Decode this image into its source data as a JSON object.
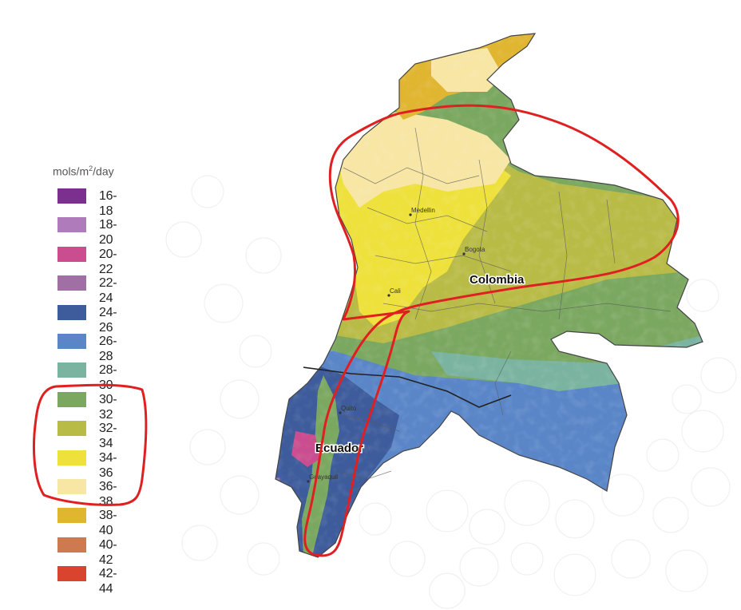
{
  "legend": {
    "title_main": "mols/m",
    "title_sup": "2",
    "title_tail": "/day",
    "items": [
      {
        "label": "16-18",
        "color": "#7b2f8e"
      },
      {
        "label": "18-20",
        "color": "#b07bbb"
      },
      {
        "label": "20-22",
        "color": "#c94d8f"
      },
      {
        "label": "22-24",
        "color": "#a070a4"
      },
      {
        "label": "24-26",
        "color": "#3e5c9c"
      },
      {
        "label": "26-28",
        "color": "#5a86c8"
      },
      {
        "label": "28-30",
        "color": "#7ab3a0"
      },
      {
        "label": "30-32",
        "color": "#7ba861"
      },
      {
        "label": "32-34",
        "color": "#b9bb47"
      },
      {
        "label": "34-36",
        "color": "#eee13c"
      },
      {
        "label": "36-38",
        "color": "#f7e6a4"
      },
      {
        "label": "38-40",
        "color": "#e0b530"
      },
      {
        "label": "40-42",
        "color": "#ce7a50"
      },
      {
        "label": "42-44",
        "color": "#d8442e"
      }
    ]
  },
  "map": {
    "countries": [
      {
        "name": "Colombia"
      },
      {
        "name": "Ecuador"
      }
    ],
    "cities": [
      {
        "name": "Medellin"
      },
      {
        "name": "Bogota"
      },
      {
        "name": "Cali"
      },
      {
        "name": "Quito"
      },
      {
        "name": "Guayaquil"
      }
    ],
    "highlight_color": "#e02020"
  }
}
